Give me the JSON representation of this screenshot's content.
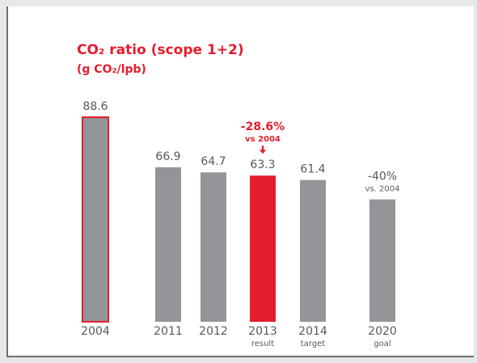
{
  "chart_data": {
    "type": "bar",
    "title": "CO₂ ratio (scope 1+2)",
    "subtitle": "(g CO₂/lpb)",
    "categories": [
      "2004",
      "2011",
      "2012",
      "2013",
      "2014",
      "2020"
    ],
    "category_notes": [
      null,
      null,
      null,
      "result",
      "target",
      "goal"
    ],
    "values": [
      88.6,
      66.9,
      64.7,
      63.3,
      61.4,
      53
    ],
    "value_labels": [
      "88.6",
      "66.9",
      "64.7",
      "63.3",
      "61.4",
      null
    ],
    "colors": [
      "#939598",
      "#939598",
      "#939598",
      "#e31e2d",
      "#939598",
      "#939598"
    ],
    "outlines": [
      "#e31e2d",
      null,
      null,
      null,
      null,
      null
    ],
    "annotations": [
      {
        "index": 3,
        "text": "-28.6%",
        "sub": "vs 2004",
        "arrow": "🡇",
        "color": "#e31e2d"
      },
      {
        "index": 5,
        "text": "-40%",
        "sub": "vs. 2004",
        "color": "#58595b"
      }
    ],
    "ylim": [
      0,
      100
    ]
  }
}
